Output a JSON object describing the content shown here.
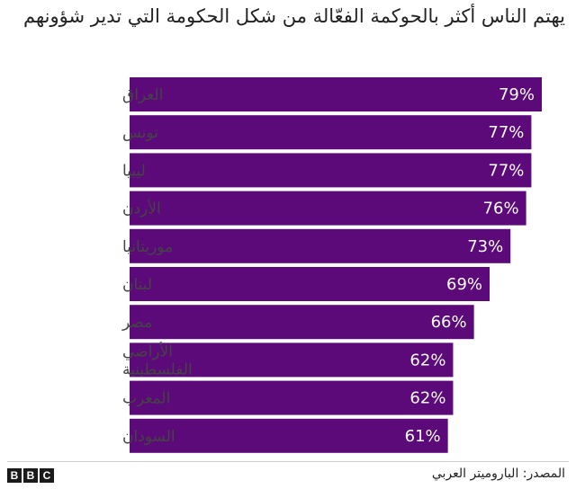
{
  "title": "يهتم الناس أكثر بالحوكمة الفعّالة من شكل الحكومة التي تدير شؤونهم",
  "source": "المصدر: الباروميتر العربي",
  "logo_letters": [
    "B",
    "B",
    "C"
  ],
  "colors": {
    "bar": "#5c0a7a",
    "text": "#222222",
    "label": "#444444"
  },
  "chart_data": {
    "type": "bar",
    "orientation": "horizontal",
    "categories": [
      "العراق",
      "تونس",
      "ليبيا",
      "الأردن",
      "موريتانيا",
      "لبنان",
      "مصر",
      [
        "الأراضي",
        "الفلسطينية"
      ],
      "المغرب",
      "السودان"
    ],
    "values": [
      79,
      77,
      77,
      76,
      73,
      69,
      66,
      62,
      62,
      61
    ],
    "value_labels": [
      "79%",
      "77%",
      "77%",
      "76%",
      "73%",
      "69%",
      "66%",
      "62%",
      "62%",
      "61%"
    ],
    "unit": "%",
    "xlim": [
      0,
      79
    ],
    "grid": false,
    "legend": "none"
  }
}
